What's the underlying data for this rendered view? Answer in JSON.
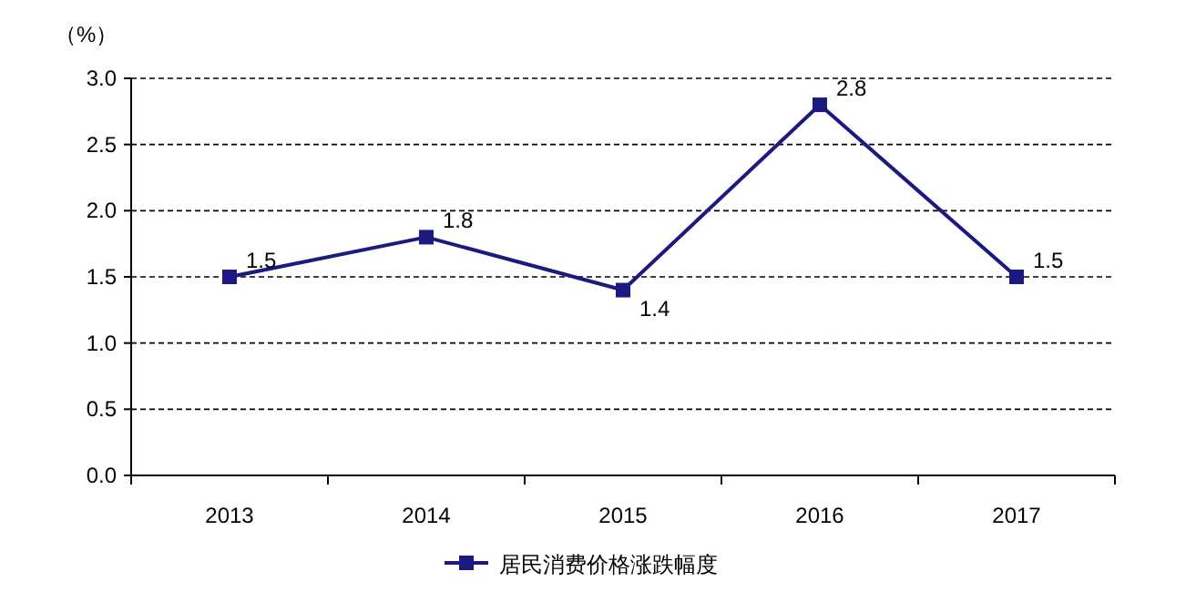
{
  "chart_data": {
    "type": "line",
    "ylabel": "（%）",
    "categories": [
      "2013",
      "2014",
      "2015",
      "2016",
      "2017"
    ],
    "series": [
      {
        "name": "居民消费价格涨跌幅度",
        "color": "#1a1a80",
        "values": [
          1.5,
          1.8,
          1.4,
          2.8,
          1.5
        ]
      }
    ],
    "ylim": [
      0,
      3
    ],
    "yticks": [
      {
        "value": 0,
        "label": "0.0"
      },
      {
        "value": 0.5,
        "label": "0.5"
      },
      {
        "value": 1,
        "label": "1.0"
      },
      {
        "value": 1.5,
        "label": "1.5"
      },
      {
        "value": 2,
        "label": "2.0"
      },
      {
        "value": 2.5,
        "label": "2.5"
      },
      {
        "value": 3,
        "label": "3.0"
      }
    ],
    "grid": "y",
    "legend": "bottom",
    "marker": "square",
    "line_style": "solid",
    "data_labels": true
  }
}
